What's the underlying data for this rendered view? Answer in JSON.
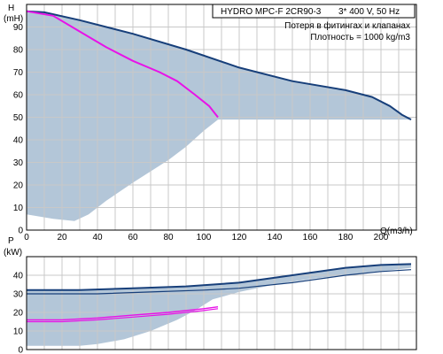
{
  "header": {
    "model": "HYDRO MPC-F 2CR90-3",
    "supply": "3* 400 V, 50 Hz",
    "note1": "Потеря в фитингах и клапанах",
    "note2": "Плотность = 1000 kg/m3"
  },
  "colors": {
    "band": "#b3c6d8",
    "max_curve": "#173f7a",
    "operating_curve": "#e812e8",
    "grid": "#c8c8c8"
  },
  "chart_data": [
    {
      "type": "line",
      "title": "",
      "ylabel_top": "H",
      "ylabel_unit": "(mH)",
      "xlabel": "Q(m3/h)",
      "xlim": [
        0,
        220
      ],
      "ylim": [
        0,
        100
      ],
      "grid": true,
      "x_ticks": [
        "0",
        "20",
        "40",
        "60",
        "80",
        "100",
        "120",
        "140",
        "160",
        "180",
        "200"
      ],
      "y_ticks": [
        "0",
        "10",
        "20",
        "30",
        "40",
        "50",
        "60",
        "70",
        "80",
        "90"
      ],
      "band_upper": [
        [
          0,
          97
        ],
        [
          10,
          96.5
        ],
        [
          30,
          93
        ],
        [
          60,
          87
        ],
        [
          90,
          80
        ],
        [
          120,
          72
        ],
        [
          150,
          66
        ],
        [
          180,
          62
        ],
        [
          195,
          59
        ],
        [
          205,
          55
        ],
        [
          212,
          51
        ],
        [
          217,
          49
        ]
      ],
      "band_lower": [
        [
          217,
          49
        ],
        [
          180,
          49
        ],
        [
          140,
          49
        ],
        [
          112,
          49
        ],
        [
          108,
          49
        ],
        [
          100,
          44
        ],
        [
          90,
          37
        ],
        [
          80,
          31
        ],
        [
          60,
          21
        ],
        [
          45,
          13
        ],
        [
          35,
          7
        ],
        [
          27,
          4
        ],
        [
          15,
          5
        ],
        [
          0,
          7
        ]
      ],
      "series": [
        {
          "values": [
            [
              0,
              97
            ],
            [
              10,
              96.5
            ],
            [
              30,
              93
            ],
            [
              60,
              87
            ],
            [
              90,
              80
            ],
            [
              120,
              72
            ],
            [
              150,
              66
            ],
            [
              180,
              62
            ],
            [
              195,
              59
            ],
            [
              205,
              55
            ],
            [
              212,
              51
            ],
            [
              217,
              49
            ]
          ]
        },
        {
          "values": [
            [
              0,
              97
            ],
            [
              15,
              95
            ],
            [
              30,
              88
            ],
            [
              45,
              81
            ],
            [
              60,
              75
            ],
            [
              75,
              70
            ],
            [
              85,
              66
            ],
            [
              95,
              60
            ],
            [
              103,
              55
            ],
            [
              108,
              50
            ]
          ]
        }
      ]
    },
    {
      "type": "line",
      "title": "",
      "ylabel_top": "P",
      "ylabel_unit": "(kW)",
      "xlabel": "",
      "xlim": [
        0,
        220
      ],
      "ylim": [
        0,
        50
      ],
      "grid": true,
      "y_ticks": [
        "0",
        "10",
        "20",
        "30",
        "40"
      ],
      "band_upper": [
        [
          0,
          32
        ],
        [
          30,
          32
        ],
        [
          60,
          33
        ],
        [
          90,
          34
        ],
        [
          120,
          36
        ],
        [
          150,
          40
        ],
        [
          180,
          44
        ],
        [
          200,
          45.5
        ],
        [
          217,
          46
        ]
      ],
      "band_lower": [
        [
          217,
          44
        ],
        [
          160,
          38
        ],
        [
          140,
          35
        ],
        [
          120,
          31
        ],
        [
          105,
          27
        ],
        [
          95,
          21
        ],
        [
          85,
          16
        ],
        [
          70,
          10
        ],
        [
          55,
          5.5
        ],
        [
          40,
          3
        ],
        [
          30,
          2
        ],
        [
          0,
          2
        ]
      ],
      "series": [
        {
          "values": [
            [
              0,
              32
            ],
            [
              30,
              32
            ],
            [
              60,
              33
            ],
            [
              90,
              34
            ],
            [
              120,
              36
            ],
            [
              150,
              40
            ],
            [
              180,
              44
            ],
            [
              200,
              45.5
            ],
            [
              217,
              46
            ]
          ]
        },
        {
          "values": [
            [
              0,
              30
            ],
            [
              40,
              30
            ],
            [
              70,
              31
            ],
            [
              100,
              32
            ],
            [
              120,
              33
            ],
            [
              150,
              36
            ],
            [
              180,
              40
            ],
            [
              200,
              42
            ],
            [
              217,
              43
            ]
          ]
        },
        {
          "values": [
            [
              0,
              16
            ],
            [
              20,
              16
            ],
            [
              40,
              17
            ],
            [
              60,
              18.5
            ],
            [
              80,
              20
            ],
            [
              100,
              22
            ],
            [
              108,
              23
            ]
          ]
        },
        {
          "values": [
            [
              0,
              15
            ],
            [
              20,
              15
            ],
            [
              40,
              16
            ],
            [
              60,
              17.5
            ],
            [
              80,
              19
            ],
            [
              100,
              21
            ],
            [
              108,
              22
            ]
          ]
        }
      ]
    }
  ]
}
